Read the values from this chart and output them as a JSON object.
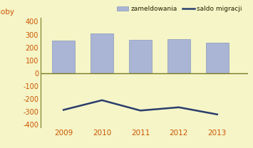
{
  "years": [
    2009,
    2010,
    2011,
    2012,
    2013
  ],
  "zameldowania": [
    255,
    310,
    260,
    265,
    235
  ],
  "saldo_migracji": [
    -285,
    -210,
    -290,
    -265,
    -320
  ],
  "bar_color": "#aab4d4",
  "bar_edge_color": "#8899bb",
  "line_color": "#2a3d6b",
  "background_color": "#f5f5c8",
  "ylabel": "osoby",
  "yticks": [
    -400,
    -300,
    -200,
    -100,
    0,
    100,
    200,
    300,
    400
  ],
  "ylim": [
    -420,
    430
  ],
  "legend_bar_label": "zameldowania",
  "legend_line_label": "saldo migracji",
  "bar_width": 0.6,
  "zero_line_color": "#7a7a20",
  "spine_color": "#7a7a20",
  "tick_label_color": "#cc5500",
  "ylabel_color": "#cc5500",
  "xlim_left": 2008.4,
  "xlim_right": 2013.8
}
